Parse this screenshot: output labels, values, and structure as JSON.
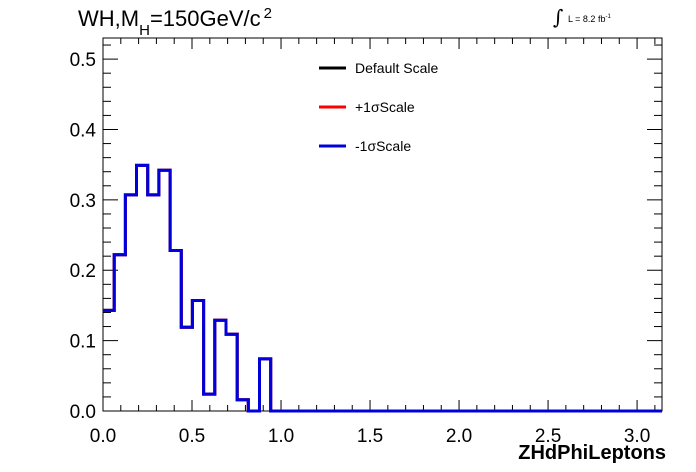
{
  "title": {
    "process": "WH,M",
    "subscript": "H",
    "mass": "=150GeV/c",
    "superscript": "2"
  },
  "luminosity": {
    "text": "L = 8.2 fb",
    "superscript": "-1"
  },
  "chart_data": {
    "type": "line",
    "style": "step-histogram",
    "xlabel": "ZHdPhiLeptons",
    "ylabel": "",
    "xlim": [
      0,
      3.14
    ],
    "ylim": [
      0,
      0.53
    ],
    "x_ticks": [
      "0.0",
      "0.5",
      "1.0",
      "1.5",
      "2.0",
      "2.5",
      "3.0"
    ],
    "y_ticks": [
      "0.0",
      "0.1",
      "0.2",
      "0.3",
      "0.4",
      "0.5"
    ],
    "bin_width": 0.0628,
    "legend_position": "top-center",
    "series": [
      {
        "name": "Default Scale",
        "color": "#000000",
        "values": [
          0.143,
          0.222,
          0.307,
          0.349,
          0.307,
          0.342,
          0.228,
          0.119,
          0.157,
          0.024,
          0.129,
          0.109,
          0.016,
          0.0,
          0.074,
          0.0,
          0.0,
          0.0,
          0.0,
          0.0,
          0.0,
          0.0,
          0.0,
          0.0,
          0.0,
          0.0,
          0.0,
          0.0,
          0.0,
          0.0,
          0.0,
          0.0,
          0.0,
          0.0,
          0.0,
          0.0,
          0.0,
          0.0,
          0.0,
          0.0,
          0.0,
          0.0,
          0.0,
          0.0,
          0.0,
          0.0,
          0.0,
          0.0,
          0.0,
          0.0
        ]
      },
      {
        "name": "+1σScale",
        "color": "#ff0000",
        "values": [
          0.143,
          0.222,
          0.307,
          0.349,
          0.307,
          0.342,
          0.228,
          0.119,
          0.157,
          0.024,
          0.129,
          0.109,
          0.016,
          0.0,
          0.074,
          0.0,
          0.0,
          0.0,
          0.0,
          0.0,
          0.0,
          0.0,
          0.0,
          0.0,
          0.0,
          0.0,
          0.0,
          0.0,
          0.0,
          0.0,
          0.0,
          0.0,
          0.0,
          0.0,
          0.0,
          0.0,
          0.0,
          0.0,
          0.0,
          0.0,
          0.0,
          0.0,
          0.0,
          0.0,
          0.0,
          0.0,
          0.0,
          0.0,
          0.0,
          0.0
        ]
      },
      {
        "name": "-1σScale",
        "color": "#0000dd",
        "values": [
          0.143,
          0.222,
          0.307,
          0.349,
          0.307,
          0.342,
          0.228,
          0.119,
          0.157,
          0.024,
          0.129,
          0.109,
          0.016,
          0.0,
          0.074,
          0.0,
          0.0,
          0.0,
          0.0,
          0.0,
          0.0,
          0.0,
          0.0,
          0.0,
          0.0,
          0.0,
          0.0,
          0.0,
          0.0,
          0.0,
          0.0,
          0.0,
          0.0,
          0.0,
          0.0,
          0.0,
          0.0,
          0.0,
          0.0,
          0.0,
          0.0,
          0.0,
          0.0,
          0.0,
          0.0,
          0.0,
          0.0,
          0.0,
          0.0,
          0.0
        ]
      }
    ]
  }
}
